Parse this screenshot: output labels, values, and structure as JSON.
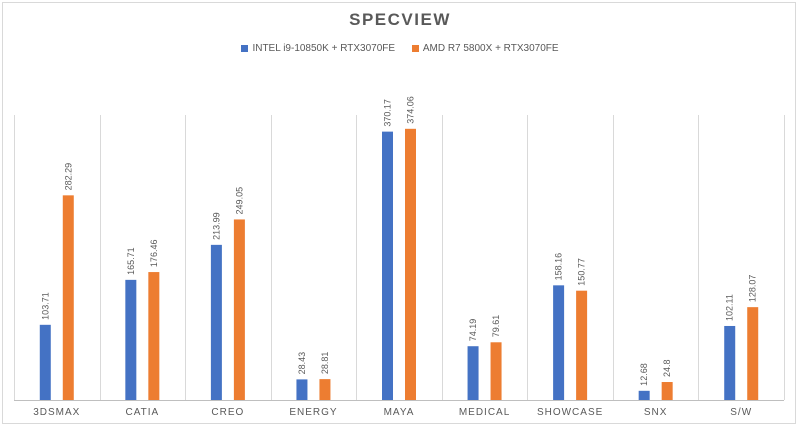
{
  "chart_data": {
    "type": "bar",
    "title": "SPECVIEW",
    "xlabel": "",
    "ylabel": "",
    "categories": [
      "3DSMAX",
      "CATIA",
      "CREO",
      "ENERGY",
      "MAYA",
      "MEDICAL",
      "SHOWCASE",
      "SNX",
      "S/W"
    ],
    "series": [
      {
        "name": "INTEL i9-10850K + RTX3070FE",
        "color": "#4472c4",
        "values": [
          103.71,
          165.71,
          213.99,
          28.43,
          370.17,
          74.19,
          158.16,
          12.68,
          102.11
        ]
      },
      {
        "name": "AMD R7 5800X + RTX3070FE",
        "color": "#ed7d31",
        "values": [
          282.29,
          176.46,
          249.05,
          28.81,
          374.06,
          79.61,
          150.77,
          24.8,
          128.07
        ]
      }
    ],
    "ylim": [
      0,
      400
    ],
    "grid": "vertical category separators",
    "legend_position": "top"
  }
}
